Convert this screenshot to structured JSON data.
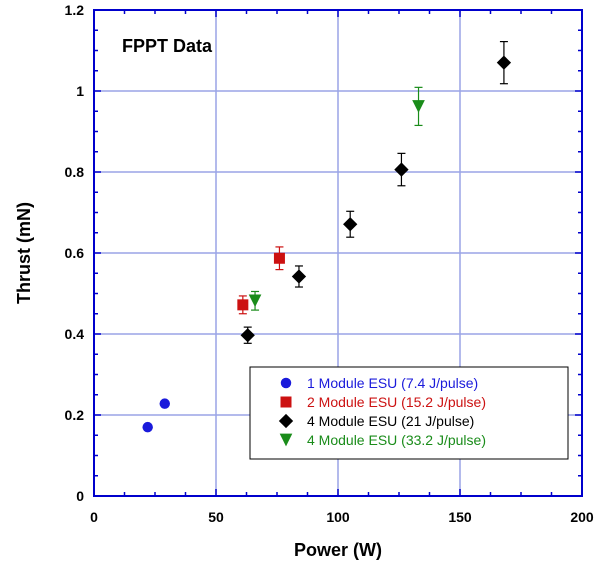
{
  "chart_data": {
    "type": "scatter",
    "title": "FPPT Data",
    "xlabel": "Power (W)",
    "ylabel": "Thrust (mN)",
    "xlim": [
      0,
      200
    ],
    "ylim": [
      0,
      1.2
    ],
    "xticks": [
      "0",
      "50",
      "100",
      "150",
      "200"
    ],
    "yticks": [
      "0",
      "0.2",
      "0.4",
      "0.6",
      "0.8",
      "1",
      "1.2"
    ],
    "grid": true,
    "legend_position": "bottom-right",
    "series": [
      {
        "name": "1 Module ESU (7.4 J/pulse)",
        "marker": "circle",
        "color": "#1a1adb",
        "points": [
          {
            "x": 22,
            "y": 0.17
          },
          {
            "x": 29,
            "y": 0.228
          }
        ]
      },
      {
        "name": "2 Module ESU (15.2 J/pulse)",
        "marker": "square",
        "color": "#cc1111",
        "points": [
          {
            "x": 61,
            "y": 0.472,
            "err": 0.022
          },
          {
            "x": 76,
            "y": 0.587,
            "err": 0.028
          }
        ]
      },
      {
        "name": "4 Module ESU (21 J/pulse)",
        "marker": "diamond",
        "color": "#000000",
        "points": [
          {
            "x": 63,
            "y": 0.397,
            "err": 0.02
          },
          {
            "x": 84,
            "y": 0.542,
            "err": 0.026
          },
          {
            "x": 105,
            "y": 0.671,
            "err": 0.032
          },
          {
            "x": 126,
            "y": 0.806,
            "err": 0.04
          },
          {
            "x": 168,
            "y": 1.07,
            "err": 0.052
          }
        ]
      },
      {
        "name": "4 Module ESU (33.2 J/pulse)",
        "marker": "triangle-down",
        "color": "#1a8c1a",
        "points": [
          {
            "x": 66,
            "y": 0.482,
            "err": 0.023
          },
          {
            "x": 133,
            "y": 0.962,
            "err": 0.047
          }
        ]
      }
    ]
  },
  "colors": {
    "frame": "#0000cc",
    "grid": "#9aa4e6"
  }
}
